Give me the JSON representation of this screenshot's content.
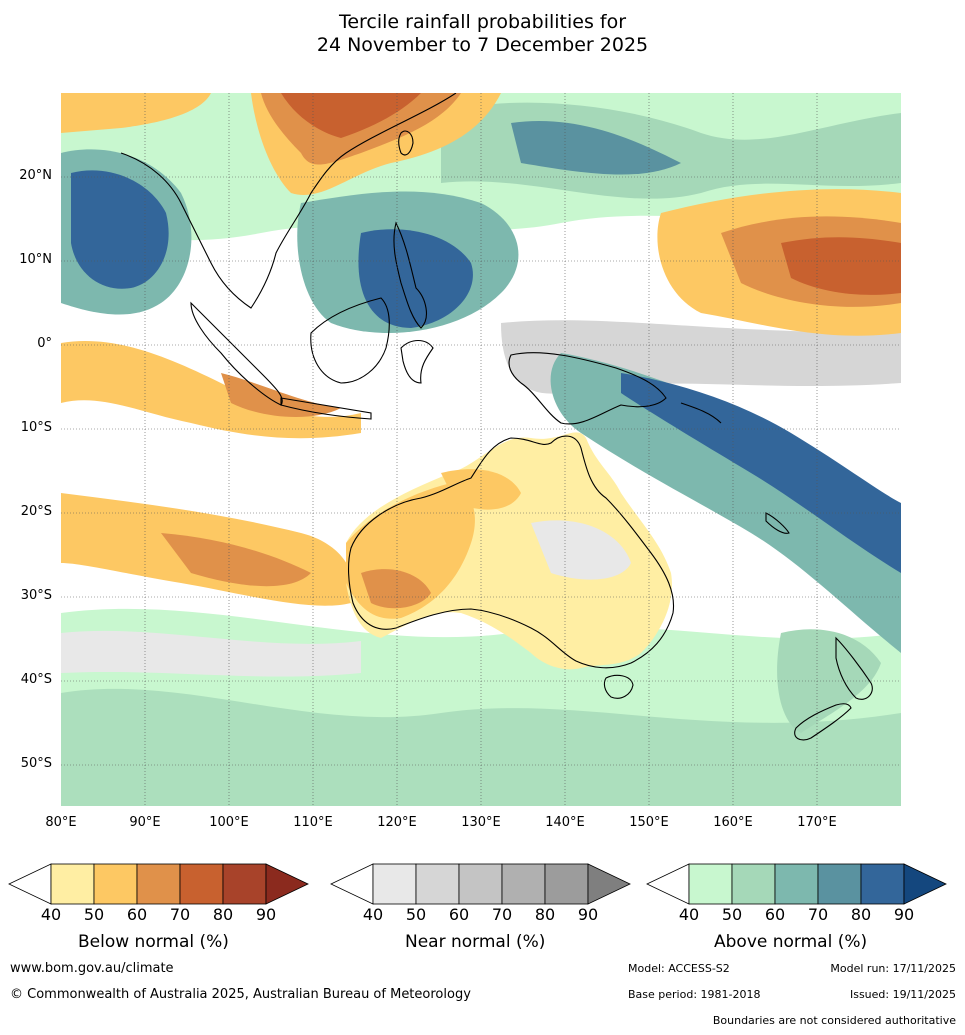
{
  "title": {
    "line1": "Tercile rainfall probabilities for",
    "line2": "24 November to 7 December 2025"
  },
  "map": {
    "latitude_labels": [
      "20°N",
      "10°N",
      "0°",
      "10°S",
      "20°S",
      "30°S",
      "40°S",
      "50°S"
    ],
    "longitude_labels": [
      "80°E",
      "90°E",
      "100°E",
      "110°E",
      "120°E",
      "130°E",
      "140°E",
      "150°E",
      "160°E",
      "170°E"
    ]
  },
  "legends": {
    "below": {
      "title": "Below normal (%)",
      "ticks": [
        "40",
        "50",
        "60",
        "70",
        "80",
        "90"
      ],
      "colors": [
        "#ffffff",
        "#ffeea3",
        "#fdc863",
        "#e0914a",
        "#c8612f",
        "#a8432a",
        "#8b2a1e"
      ]
    },
    "near": {
      "title": "Near normal (%)",
      "ticks": [
        "40",
        "50",
        "60",
        "70",
        "80",
        "90"
      ],
      "colors": [
        "#ffffff",
        "#e8e8e8",
        "#d6d6d6",
        "#c4c4c4",
        "#b0b0b0",
        "#9c9c9c",
        "#7f7f7f"
      ]
    },
    "above": {
      "title": "Above normal (%)",
      "ticks": [
        "40",
        "50",
        "60",
        "70",
        "80",
        "90"
      ],
      "colors": [
        "#ffffff",
        "#c8f7cf",
        "#a5d8b8",
        "#7db8ae",
        "#5a92a0",
        "#33669a",
        "#14477e"
      ]
    }
  },
  "footer": {
    "website": "www.bom.gov.au/climate",
    "copyright": "© Commonwealth of Australia 2025, Australian Bureau of Meteorology",
    "model": "Model: ACCESS-S2",
    "model_run": "Model run: 17/11/2025",
    "base_period": "Base period: 1981-2018",
    "issued": "Issued: 19/11/2025",
    "disclaimer": "Boundaries are not considered authoritative"
  }
}
